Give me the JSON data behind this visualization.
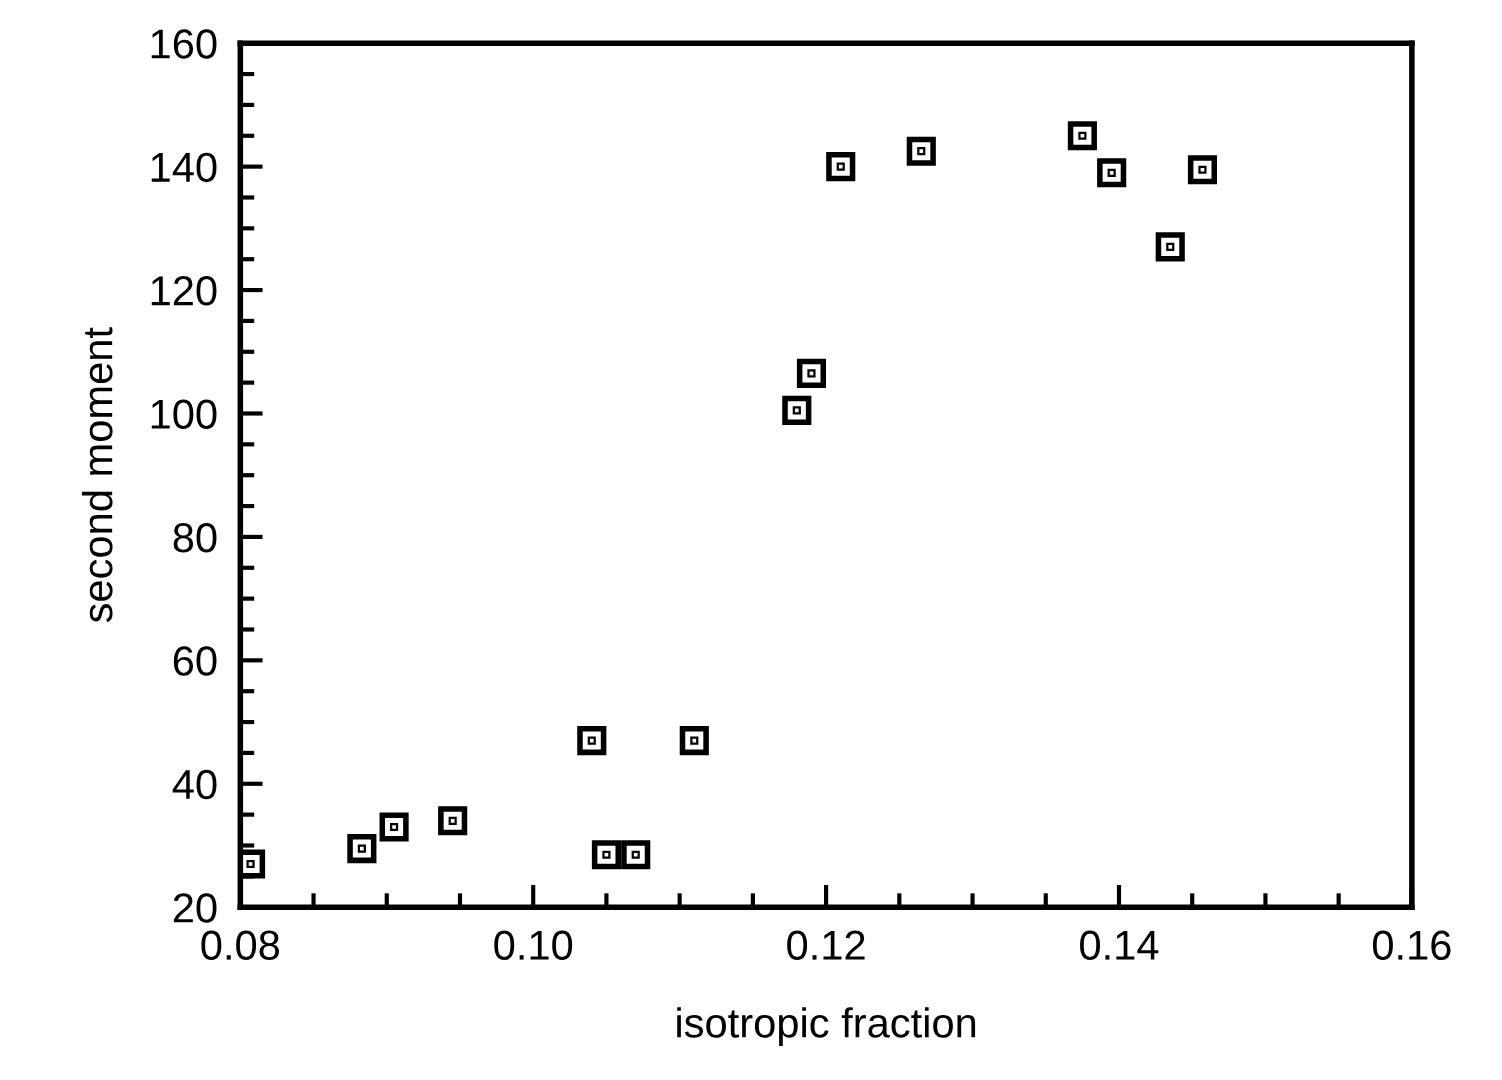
{
  "chart_data": {
    "type": "scatter",
    "xlabel": "isotropic fraction",
    "ylabel": "second moment",
    "x": [
      0.0807,
      0.0883,
      0.0905,
      0.0945,
      0.104,
      0.105,
      0.107,
      0.111,
      0.118,
      0.119,
      0.121,
      0.1265,
      0.1375,
      0.1395,
      0.1435,
      0.1457
    ],
    "series": [
      {
        "color": "#000000",
        "values": [
          27,
          29.5,
          33,
          34,
          47,
          28.5,
          28.5,
          47,
          100.5,
          106.5,
          140,
          142.5,
          145,
          139,
          127,
          139.5
        ]
      }
    ],
    "xlim": [
      0.08,
      0.16
    ],
    "xticks": [
      {
        "value": 0.08,
        "label": "0.08"
      },
      {
        "value": 0.1,
        "label": "0.10"
      },
      {
        "value": 0.12,
        "label": "0.12"
      },
      {
        "value": 0.14,
        "label": "0.14"
      },
      {
        "value": 0.16,
        "label": "0.16"
      }
    ],
    "ylim": [
      20,
      160
    ],
    "yticks": [
      20,
      40,
      60,
      80,
      100,
      120,
      140,
      160
    ],
    "marker": "square",
    "grid": false
  }
}
